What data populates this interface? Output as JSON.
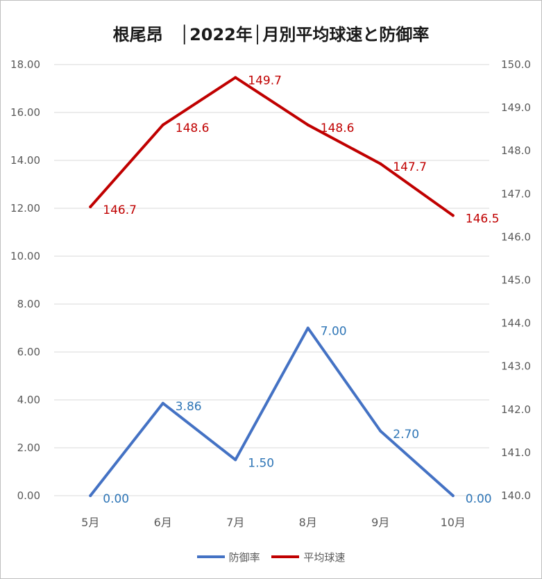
{
  "chart_data": {
    "type": "line",
    "title": "根尾昂　│2022年│月別平均球速と防御率",
    "categories": [
      "5月",
      "6月",
      "7月",
      "8月",
      "9月",
      "10月"
    ],
    "series": [
      {
        "name": "防御率",
        "axis": "left",
        "color": "#4472c4",
        "label_color": "#2e75b6",
        "values": [
          0.0,
          3.86,
          1.5,
          7.0,
          2.7,
          0.0
        ],
        "labels": [
          "0.00",
          "3.86",
          "1.50",
          "7.00",
          "2.70",
          "0.00"
        ]
      },
      {
        "name": "平均球速",
        "axis": "right",
        "color": "#c00000",
        "label_color": "#c00000",
        "values": [
          146.7,
          148.6,
          149.7,
          148.6,
          147.7,
          146.5
        ],
        "labels": [
          "146.7",
          "148.6",
          "149.7",
          "148.6",
          "147.7",
          "146.5"
        ]
      }
    ],
    "y_left": {
      "ylim": [
        0,
        18
      ],
      "ticks": [
        "0.00",
        "2.00",
        "4.00",
        "6.00",
        "8.00",
        "10.00",
        "12.00",
        "14.00",
        "16.00",
        "18.00"
      ]
    },
    "y_right": {
      "ylim": [
        140,
        150
      ],
      "ticks": [
        "140.0",
        "141.0",
        "142.0",
        "143.0",
        "144.0",
        "145.0",
        "146.0",
        "147.0",
        "148.0",
        "149.0",
        "150.0"
      ]
    },
    "grid": true,
    "legend": "bottom"
  }
}
